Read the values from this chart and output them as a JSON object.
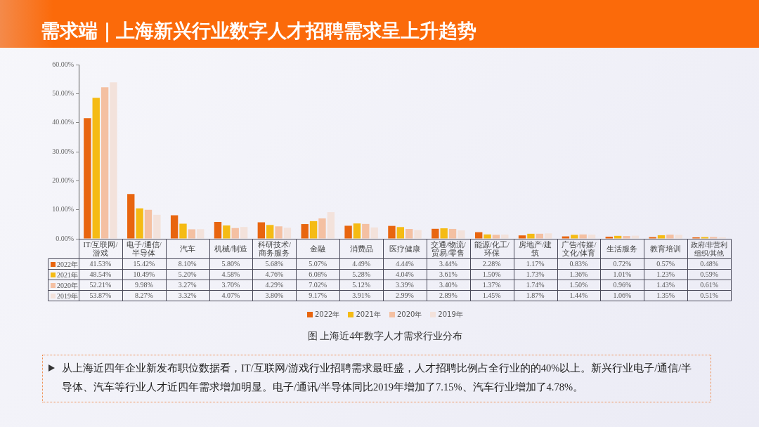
{
  "chart_data": {
    "type": "bar",
    "title": "需求端｜上海新兴行业数字人才招聘需求呈上升趋势",
    "categories": [
      "IT/互联网/游戏",
      "电子/通信/半导体",
      "汽车",
      "机械/制造",
      "科研技术/商务服务",
      "金融",
      "消费品",
      "医疗健康",
      "交通/物流/贸易/零售",
      "能源/化工/环保",
      "房地产/建筑",
      "广告/传媒/文化/体育",
      "生活服务",
      "教育培训",
      "政府/非营利组织/其他"
    ],
    "series": [
      {
        "name": "2022年",
        "color": "#e8650f",
        "values": [
          41.53,
          15.42,
          8.1,
          5.8,
          5.68,
          5.07,
          4.49,
          4.44,
          3.44,
          2.28,
          1.17,
          0.83,
          0.72,
          0.57,
          0.48
        ],
        "value_labels": [
          "41.53%",
          "15.42%",
          "8.10%",
          "5.80%",
          "5.68%",
          "5.07%",
          "4.49%",
          "4.44%",
          "3.44%",
          "2.28%",
          "1.17%",
          "0.83%",
          "0.72%",
          "0.57%",
          "0.48%"
        ]
      },
      {
        "name": "2021年",
        "color": "#f5bb14",
        "values": [
          48.54,
          10.49,
          5.2,
          4.58,
          4.76,
          6.08,
          5.28,
          4.04,
          3.61,
          1.5,
          1.73,
          1.36,
          1.01,
          1.23,
          0.59
        ],
        "value_labels": [
          "48.54%",
          "10.49%",
          "5.20%",
          "4.58%",
          "4.76%",
          "6.08%",
          "5.28%",
          "4.04%",
          "3.61%",
          "1.50%",
          "1.73%",
          "1.36%",
          "1.01%",
          "1.23%",
          "0.59%"
        ]
      },
      {
        "name": "2020年",
        "color": "#f4c0a2",
        "values": [
          52.21,
          9.98,
          3.27,
          3.7,
          4.29,
          7.02,
          5.12,
          3.39,
          3.4,
          1.37,
          1.74,
          1.5,
          0.96,
          1.43,
          0.61
        ],
        "value_labels": [
          "52.21%",
          "9.98%",
          "3.27%",
          "3.70%",
          "4.29%",
          "7.02%",
          "5.12%",
          "3.39%",
          "3.40%",
          "1.37%",
          "1.74%",
          "1.50%",
          "0.96%",
          "1.43%",
          "0.61%"
        ]
      },
      {
        "name": "2019年",
        "color": "#f3e2db",
        "values": [
          53.87,
          8.27,
          3.32,
          4.07,
          3.8,
          9.17,
          3.91,
          2.99,
          2.89,
          1.45,
          1.87,
          1.44,
          1.06,
          1.35,
          0.51
        ],
        "value_labels": [
          "53.87%",
          "8.27%",
          "3.32%",
          "4.07%",
          "3.80%",
          "9.17%",
          "3.91%",
          "2.99%",
          "2.89%",
          "1.45%",
          "1.87%",
          "1.44%",
          "1.06%",
          "1.35%",
          "0.51%"
        ]
      }
    ],
    "ylim": [
      0,
      60
    ],
    "yticks": [
      {
        "value": 0,
        "label": "0.00%"
      },
      {
        "value": 10,
        "label": "10.00%"
      },
      {
        "value": 20,
        "label": "20.00%"
      },
      {
        "value": 30,
        "label": "30.00%"
      },
      {
        "value": 40,
        "label": "40.00%"
      },
      {
        "value": 50,
        "label": "50.00%"
      },
      {
        "value": 60,
        "label": "60.00%"
      }
    ],
    "legend": "bottom",
    "annotations": [
      "图 上海近4年数字人才需求行业分布",
      "从上海近四年企业新发布职位数据看，IT/互联网/游戏行业招聘需求最旺盛，人才招聘比例占全行业的的40%以上。新兴行业电子/通信/半导体、汽车等行业人才近四年需求增加明显。电子/通讯/半导体同比2019年增加了7.15%、汽车行业增加了4.78%。"
    ]
  }
}
